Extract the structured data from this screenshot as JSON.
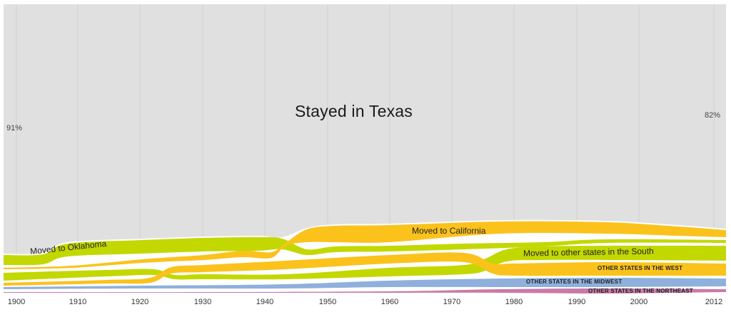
{
  "chart_data": {
    "type": "area",
    "title": "Stayed in Texas",
    "xlabel": "",
    "ylabel": "",
    "x": [
      1900,
      1910,
      1920,
      1930,
      1940,
      1950,
      1960,
      1970,
      1980,
      1990,
      2000,
      2012
    ],
    "x_tick_labels": [
      "1900",
      "1910",
      "1920",
      "1930",
      "1940",
      "1950",
      "1960",
      "1970",
      "1980",
      "1990",
      "2000",
      "2012"
    ],
    "annotations": {
      "start_value": "91%",
      "end_value": "82%"
    },
    "series": [
      {
        "name": "Stayed in Texas",
        "color": "#e0e0e0",
        "values": [
          91,
          89,
          88,
          87,
          86,
          84,
          83,
          82,
          82,
          82,
          82,
          82
        ]
      },
      {
        "name": "Moved to Oklahoma",
        "color": "#c2d800",
        "values": [
          3.0,
          3.5,
          3.5,
          3.0,
          2.5,
          1.5,
          1.2,
          1.0,
          1.0,
          1.0,
          1.0,
          0.8
        ]
      },
      {
        "name": "Moved to California",
        "color": "#fbc21c",
        "values": [
          0.3,
          0.6,
          0.8,
          1.5,
          2.0,
          4.5,
          4.5,
          4.3,
          4.3,
          4.0,
          3.5,
          2.0
        ]
      },
      {
        "name": "Moved to other states in the South",
        "color": "#c2d800",
        "values": [
          2.5,
          2.2,
          2.0,
          1.5,
          1.8,
          2.0,
          2.2,
          2.5,
          3.5,
          4.0,
          4.0,
          4.5
        ]
      },
      {
        "name": "Other states in the West",
        "color": "#fbc21c",
        "values": [
          0.6,
          0.8,
          1.2,
          2.0,
          2.3,
          2.4,
          2.5,
          3.0,
          3.5,
          3.5,
          3.5,
          3.5
        ]
      },
      {
        "name": "Other states in the Midwest",
        "color": "#8fb0dc",
        "values": [
          0.5,
          0.7,
          0.9,
          1.1,
          1.2,
          1.5,
          1.8,
          2.2,
          2.5,
          2.5,
          2.5,
          2.3
        ]
      },
      {
        "name": "Other states in the Northeast",
        "color": "#c97aa8",
        "values": [
          0.2,
          0.2,
          0.2,
          0.3,
          0.3,
          0.4,
          0.5,
          0.8,
          0.9,
          1.0,
          1.0,
          0.9
        ]
      }
    ],
    "labels": {
      "oklahoma": "Moved to Oklahoma",
      "california": "Moved to California",
      "south": "Moved to other states in the South",
      "west": "OTHER STATES IN THE WEST",
      "midwest": "OTHER STATES IN THE MIDWEST",
      "northeast": "OTHER STATES IN THE NORTHEAST"
    },
    "grid": "vertical",
    "legend": "inline labels"
  }
}
